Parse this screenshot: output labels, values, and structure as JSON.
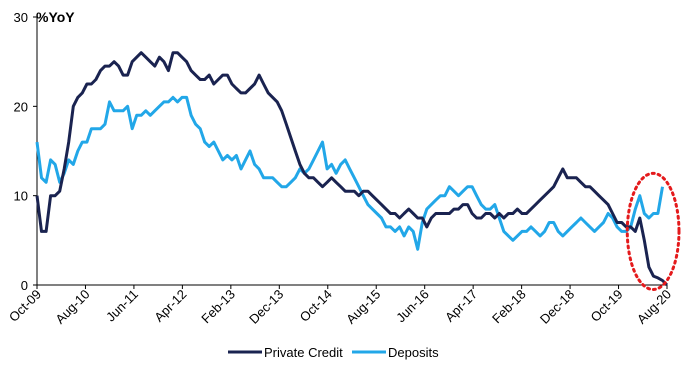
{
  "chart_data": {
    "type": "line",
    "unit_label": "%YoY",
    "ylim": [
      0,
      30
    ],
    "yticks": [
      0,
      10,
      20,
      30
    ],
    "x_tick_labels": [
      "Oct-09",
      "Aug-10",
      "Jun-11",
      "Apr-12",
      "Feb-13",
      "Dec-13",
      "Oct-14",
      "Aug-15",
      "Jun-16",
      "Apr-17",
      "Feb-18",
      "Dec-18",
      "Oct-19",
      "Aug-20"
    ],
    "grid": false,
    "legend_position": "bottom",
    "highlight": "dotted red ellipse around the last months (mid-2020)",
    "series": [
      {
        "name": "Private Credit",
        "color": "#1a2350",
        "values": [
          10,
          6,
          6,
          10,
          10,
          10.5,
          13,
          16,
          20,
          21,
          21.5,
          22.5,
          22.5,
          23,
          24,
          24.5,
          24.5,
          25,
          24.5,
          23.5,
          23.5,
          25,
          25.5,
          26,
          25.5,
          25,
          24.5,
          25.5,
          25,
          24,
          26,
          26,
          25.5,
          25,
          24,
          23.5,
          23,
          23,
          23.5,
          22.5,
          23,
          23.5,
          23.5,
          22.5,
          22,
          21.5,
          21.5,
          22,
          22.5,
          23.5,
          22.5,
          21.5,
          21,
          20.5,
          19.5,
          18,
          16.5,
          15,
          13.5,
          12.5,
          12,
          12,
          11.5,
          11,
          11.5,
          12,
          11.5,
          11,
          10.5,
          10.5,
          10.5,
          10,
          10.5,
          10.5,
          10,
          9.5,
          9,
          8.5,
          8,
          8,
          7.5,
          8,
          8.5,
          8,
          7.5,
          7.5,
          6.5,
          7.5,
          8,
          8,
          8,
          8,
          8.5,
          8.5,
          9,
          9,
          8,
          7.5,
          7.5,
          8,
          8,
          7.5,
          8,
          7.5,
          8,
          8,
          8.5,
          8,
          8,
          8.5,
          9,
          9.5,
          10,
          10.5,
          11,
          12,
          13,
          12,
          12,
          12,
          11.5,
          11,
          11,
          10.5,
          10,
          9.5,
          9,
          8,
          7,
          7,
          6.5,
          6.5,
          6,
          7.5,
          5,
          2,
          1,
          0.8,
          0.5,
          0
        ]
      },
      {
        "name": "Deposits",
        "color": "#22a7e8",
        "values": [
          16,
          12,
          11.5,
          14,
          13.5,
          11.5,
          12.5,
          14,
          13.5,
          15,
          16,
          16,
          17.5,
          17.5,
          17.5,
          18,
          20.5,
          19.5,
          19.5,
          19.5,
          20,
          17.5,
          19,
          19,
          19.5,
          19,
          19.5,
          20,
          20.5,
          20.5,
          21,
          20.5,
          21,
          21,
          19,
          18,
          17.5,
          16,
          15.5,
          16,
          15,
          14,
          14.5,
          14,
          14.5,
          13,
          14,
          15,
          13.5,
          13,
          12,
          12,
          12,
          11.5,
          11,
          11,
          11.5,
          12,
          13,
          12.5,
          13,
          14,
          15,
          16,
          13,
          13.5,
          12.5,
          13.5,
          14,
          13,
          12,
          11,
          10,
          9,
          8.5,
          8,
          7.5,
          6.5,
          6.5,
          6,
          6.5,
          5.5,
          6.5,
          6,
          4,
          7,
          8.5,
          9,
          9.5,
          10,
          10,
          11,
          10.5,
          10,
          10.5,
          11,
          11,
          10,
          9,
          8.5,
          8.5,
          9,
          7.5,
          6,
          5.5,
          5,
          5.5,
          6,
          6,
          6.5,
          6,
          5.5,
          6,
          7,
          7,
          6,
          5.5,
          6,
          6.5,
          7,
          7.5,
          7,
          6.5,
          6,
          6.5,
          7,
          8,
          7.5,
          6.5,
          6,
          6,
          6.5,
          8.5,
          10,
          8,
          7.5,
          8,
          8,
          11
        ]
      }
    ]
  }
}
